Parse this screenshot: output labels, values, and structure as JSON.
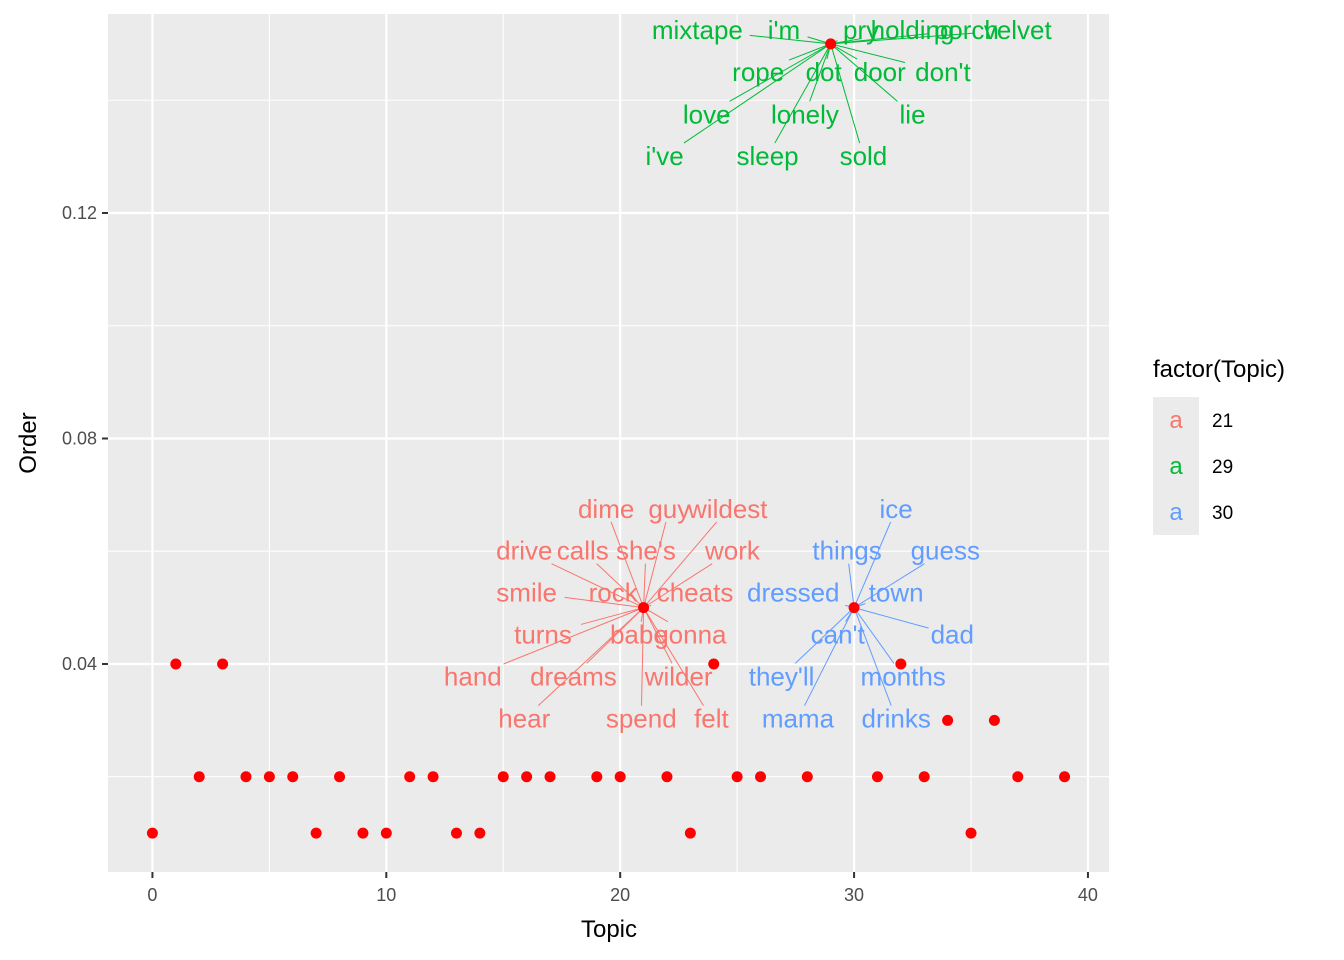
{
  "chart_data": {
    "type": "scatter",
    "xlabel": "Topic",
    "ylabel": "Order",
    "xlim": [
      -1.9,
      40.9
    ],
    "ylim": [
      0.0031,
      0.1553
    ],
    "x_ticks": [
      0,
      10,
      20,
      30,
      40
    ],
    "x_tick_labels": [
      "0",
      "10",
      "20",
      "30",
      "40"
    ],
    "y_ticks": [
      0.04,
      0.08,
      0.12
    ],
    "y_tick_labels": [
      "0.04",
      "0.08",
      "0.12"
    ],
    "grid": true,
    "point_color": "#ff0000",
    "points": [
      {
        "x": 0,
        "y": 0.01
      },
      {
        "x": 1,
        "y": 0.04
      },
      {
        "x": 2,
        "y": 0.02
      },
      {
        "x": 3,
        "y": 0.04
      },
      {
        "x": 4,
        "y": 0.02
      },
      {
        "x": 5,
        "y": 0.02
      },
      {
        "x": 6,
        "y": 0.02
      },
      {
        "x": 7,
        "y": 0.01
      },
      {
        "x": 8,
        "y": 0.02
      },
      {
        "x": 9,
        "y": 0.01
      },
      {
        "x": 10,
        "y": 0.01
      },
      {
        "x": 11,
        "y": 0.02
      },
      {
        "x": 12,
        "y": 0.02
      },
      {
        "x": 13,
        "y": 0.01
      },
      {
        "x": 14,
        "y": 0.01
      },
      {
        "x": 15,
        "y": 0.02
      },
      {
        "x": 16,
        "y": 0.02
      },
      {
        "x": 17,
        "y": 0.02
      },
      {
        "x": 19,
        "y": 0.02
      },
      {
        "x": 20,
        "y": 0.02
      },
      {
        "x": 21,
        "y": 0.05
      },
      {
        "x": 22,
        "y": 0.02
      },
      {
        "x": 23,
        "y": 0.01
      },
      {
        "x": 24,
        "y": 0.04
      },
      {
        "x": 25,
        "y": 0.02
      },
      {
        "x": 26,
        "y": 0.02
      },
      {
        "x": 28,
        "y": 0.02
      },
      {
        "x": 29,
        "y": 0.15
      },
      {
        "x": 30,
        "y": 0.05
      },
      {
        "x": 31,
        "y": 0.02
      },
      {
        "x": 32,
        "y": 0.04
      },
      {
        "x": 33,
        "y": 0.02
      },
      {
        "x": 34,
        "y": 0.03
      },
      {
        "x": 35,
        "y": 0.01
      },
      {
        "x": 36,
        "y": 0.03
      },
      {
        "x": 37,
        "y": 0.02
      },
      {
        "x": 39,
        "y": 0.02
      }
    ],
    "label_groups": [
      {
        "topic": "21",
        "color": "#f8766d",
        "anchor": {
          "x": 21,
          "y": 0.05
        },
        "words": [
          {
            "text": "dime",
            "x": 19.4,
            "y": 0.0675
          },
          {
            "text": "guy",
            "x": 22.1,
            "y": 0.0675
          },
          {
            "text": "wildest",
            "x": 24.6,
            "y": 0.0675
          },
          {
            "text": "drive",
            "x": 15.9,
            "y": 0.0601
          },
          {
            "text": "calls",
            "x": 18.4,
            "y": 0.0601
          },
          {
            "text": "she's",
            "x": 21.1,
            "y": 0.0601
          },
          {
            "text": "work",
            "x": 24.8,
            "y": 0.0601
          },
          {
            "text": "smile",
            "x": 16.0,
            "y": 0.0527
          },
          {
            "text": "rock",
            "x": 19.7,
            "y": 0.0527
          },
          {
            "text": "cheats",
            "x": 23.2,
            "y": 0.0527
          },
          {
            "text": "turns",
            "x": 16.7,
            "y": 0.0452
          },
          {
            "text": "babe",
            "x": 20.8,
            "y": 0.0452
          },
          {
            "text": "gonna",
            "x": 23.0,
            "y": 0.0452
          },
          {
            "text": "hand",
            "x": 13.7,
            "y": 0.0378
          },
          {
            "text": "dreams",
            "x": 18.0,
            "y": 0.0378
          },
          {
            "text": "wilder",
            "x": 22.5,
            "y": 0.0378
          },
          {
            "text": "hear",
            "x": 15.9,
            "y": 0.0303
          },
          {
            "text": "spend",
            "x": 20.9,
            "y": 0.0303
          },
          {
            "text": "felt",
            "x": 23.9,
            "y": 0.0303
          }
        ]
      },
      {
        "topic": "29",
        "color": "#00ba38",
        "anchor": {
          "x": 29,
          "y": 0.15
        },
        "words": [
          {
            "text": "mixtape",
            "x": 23.3,
            "y": 0.1525
          },
          {
            "text": "i'm",
            "x": 27.0,
            "y": 0.1525
          },
          {
            "text": "pry",
            "x": 30.3,
            "y": 0.1525
          },
          {
            "text": "holding",
            "x": 32.5,
            "y": 0.1525
          },
          {
            "text": "porch",
            "x": 34.8,
            "y": 0.1525
          },
          {
            "text": "velvet",
            "x": 37.0,
            "y": 0.1525
          },
          {
            "text": "rope",
            "x": 25.9,
            "y": 0.145
          },
          {
            "text": "dot",
            "x": 28.7,
            "y": 0.145
          },
          {
            "text": "door",
            "x": 31.1,
            "y": 0.145
          },
          {
            "text": "don't",
            "x": 33.8,
            "y": 0.145
          },
          {
            "text": "love",
            "x": 23.7,
            "y": 0.1375
          },
          {
            "text": "lonely",
            "x": 27.9,
            "y": 0.1375
          },
          {
            "text": "lie",
            "x": 32.5,
            "y": 0.1375
          },
          {
            "text": "i've",
            "x": 21.9,
            "y": 0.1301
          },
          {
            "text": "sleep",
            "x": 26.3,
            "y": 0.1301
          },
          {
            "text": "sold",
            "x": 30.4,
            "y": 0.1301
          }
        ]
      },
      {
        "topic": "30",
        "color": "#619cff",
        "anchor": {
          "x": 30,
          "y": 0.05
        },
        "words": [
          {
            "text": "ice",
            "x": 31.8,
            "y": 0.0675
          },
          {
            "text": "things",
            "x": 29.7,
            "y": 0.0601
          },
          {
            "text": "guess",
            "x": 33.9,
            "y": 0.0601
          },
          {
            "text": "dressed",
            "x": 27.4,
            "y": 0.0527
          },
          {
            "text": "town",
            "x": 31.8,
            "y": 0.0527
          },
          {
            "text": "can't",
            "x": 29.3,
            "y": 0.0452
          },
          {
            "text": "dad",
            "x": 34.2,
            "y": 0.0452
          },
          {
            "text": "they'll",
            "x": 26.9,
            "y": 0.0378
          },
          {
            "text": "months",
            "x": 32.1,
            "y": 0.0378
          },
          {
            "text": "mama",
            "x": 27.6,
            "y": 0.0303
          },
          {
            "text": "drinks",
            "x": 31.8,
            "y": 0.0303
          }
        ]
      }
    ],
    "legend": {
      "title": "factor(Topic)",
      "placement": "right",
      "key_glyph": "a",
      "entries": [
        {
          "label": "21",
          "color": "#f8766d"
        },
        {
          "label": "29",
          "color": "#00ba38"
        },
        {
          "label": "30",
          "color": "#619cff"
        }
      ]
    },
    "panel_background": "#ebebeb",
    "grid_color": "#ffffff"
  }
}
